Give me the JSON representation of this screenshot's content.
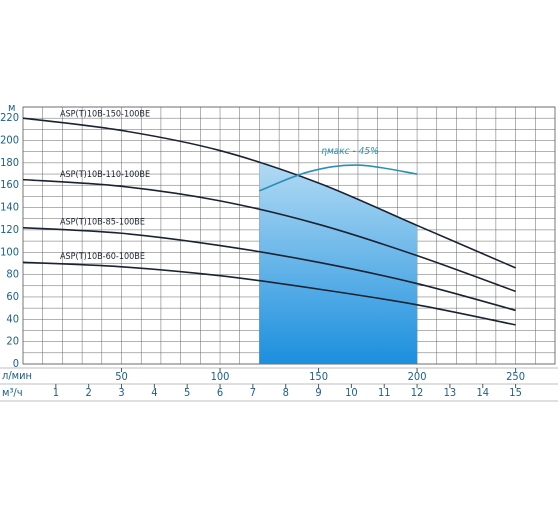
{
  "chart_data": {
    "type": "line",
    "y_label": "м",
    "x_label": "л/мин",
    "x2_label": "м³/ч",
    "x": [
      0,
      50,
      100,
      150,
      200,
      250
    ],
    "series": [
      {
        "name": "ASP(T)10B-150-100BE",
        "color": "#1b2232",
        "values": [
          220,
          209,
          191,
          162,
          124,
          86
        ]
      },
      {
        "name": "ASP(T)10B-110-100BE",
        "color": "#1b2232",
        "values": [
          165,
          159,
          146,
          125,
          97,
          65
        ]
      },
      {
        "name": "ASP(T)10B-85-100BE",
        "color": "#1b2232",
        "values": [
          122,
          117,
          106,
          91,
          72,
          48
        ]
      },
      {
        "name": "ASP(T)10B-60-100BE",
        "color": "#1b2232",
        "values": [
          91,
          87,
          79,
          67,
          53,
          35
        ]
      }
    ],
    "efficiency": {
      "label": "ηмакс - 45%",
      "color": "#2a8fb5",
      "x": [
        120,
        145,
        170,
        200
      ],
      "values": [
        155,
        172,
        178,
        170
      ]
    },
    "shade": {
      "x": [
        120,
        200
      ],
      "color_top": "#d3ebf8",
      "color_bottom": "#1b8fde"
    },
    "xlim": [
      0,
      270
    ],
    "ylim": [
      0,
      230
    ],
    "x2lim": [
      0,
      16.2
    ],
    "xticks": [
      50,
      100,
      150,
      200,
      250
    ],
    "yticks": [
      0,
      20,
      40,
      60,
      80,
      100,
      120,
      140,
      160,
      180,
      200,
      220
    ],
    "x2ticks": [
      1,
      2,
      3,
      4,
      5,
      6,
      7,
      8,
      9,
      10,
      11,
      12,
      13,
      14,
      15
    ],
    "xgrid": [
      10,
      20,
      30,
      40,
      60,
      70,
      80,
      90,
      110,
      120,
      130,
      140,
      160,
      170,
      180,
      190,
      210,
      220,
      230,
      240,
      260
    ],
    "ygrid": [
      10,
      30,
      50,
      70,
      90,
      110,
      130,
      150,
      170,
      190,
      210,
      230
    ],
    "grid": true
  }
}
